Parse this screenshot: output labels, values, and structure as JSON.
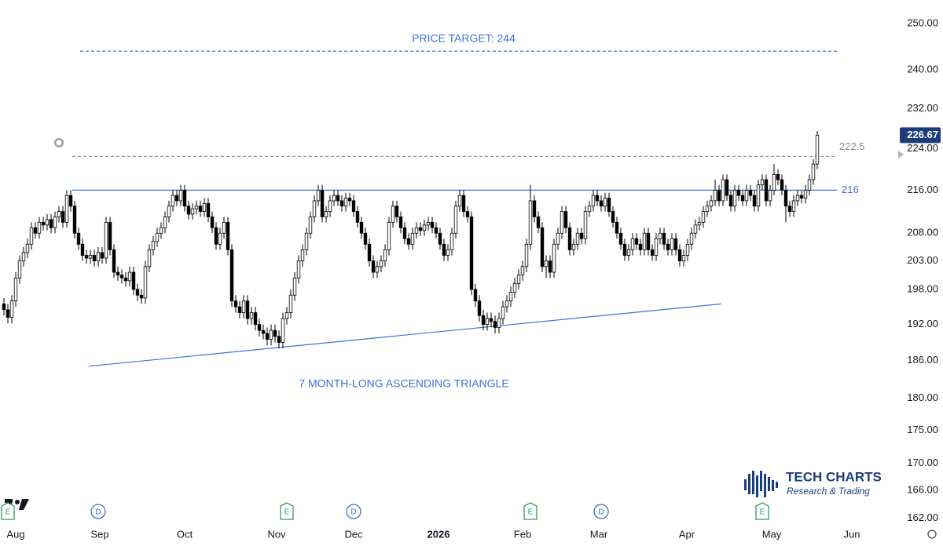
{
  "chart_data": {
    "type": "candlestick",
    "log_scale": true,
    "annotations": [
      "PRICE TARGET: 244",
      "7 MONTH-LONG ASCENDING TRIANGLE"
    ],
    "logo": {
      "title": "TECH CHARTS",
      "subtitle": "Research & Trading"
    },
    "up_color": "#ffffff",
    "down_color": "#000000",
    "wick_color": "#000000",
    "xlim": [
      -1,
      226
    ],
    "ylim": [
      158.1,
      255.2
    ],
    "xticks": [
      {
        "value": 3,
        "label": "Aug"
      },
      {
        "value": 24.4,
        "label": "Sep"
      },
      {
        "value": 46,
        "label": "Oct"
      },
      {
        "value": 69.4,
        "label": "Nov"
      },
      {
        "value": 89,
        "label": "Dec"
      },
      {
        "value": 110.6,
        "label": "2026"
      },
      {
        "value": 132,
        "label": "Feb"
      },
      {
        "value": 151.4,
        "label": "Mar"
      },
      {
        "value": 173.8,
        "label": "Apr"
      },
      {
        "value": 195.4,
        "label": "May"
      },
      {
        "value": 215.8,
        "label": "Jun"
      }
    ],
    "yticks": [
      {
        "value": 250,
        "label": "250.00"
      },
      {
        "value": 240,
        "label": "240.00"
      },
      {
        "value": 232,
        "label": "232.00"
      },
      {
        "value": 224,
        "label": "224.00"
      },
      {
        "value": 216,
        "label": "216.00"
      },
      {
        "value": 208,
        "label": "208.00"
      },
      {
        "value": 203,
        "label": "203.00"
      },
      {
        "value": 198,
        "label": "198.00"
      },
      {
        "value": 192,
        "label": "192.00"
      },
      {
        "value": 186,
        "label": "186.00"
      },
      {
        "value": 180,
        "label": "180.00"
      },
      {
        "value": 175,
        "label": "175.00"
      },
      {
        "value": 170,
        "label": "170.00"
      },
      {
        "value": 166,
        "label": "166.00"
      },
      {
        "value": 162,
        "label": "162.00"
      }
    ],
    "levels": [
      {
        "value": 244,
        "x": [
          19.4,
          212
        ],
        "color": "#3d6fe0",
        "dashed": true
      },
      {
        "value": 222.5,
        "x": [
          17.4,
          211.4
        ],
        "color": "#8a8a8a",
        "dashed": true
      },
      {
        "value": 216,
        "x": [
          17.4,
          212
        ],
        "color": "#3d6fe0",
        "dashed": false
      }
    ],
    "trendlines": [
      {
        "x": [
          21.6,
          182.6
        ],
        "y": [
          185.1,
          195.5
        ],
        "color": "#3d6fe0"
      }
    ],
    "events": [
      {
        "x": 1,
        "label": "E"
      },
      {
        "x": 24,
        "label": "D"
      },
      {
        "x": 72,
        "label": "E"
      },
      {
        "x": 89,
        "label": "D"
      },
      {
        "x": 134,
        "label": "E"
      },
      {
        "x": 152,
        "label": "D"
      },
      {
        "x": 193,
        "label": "E"
      }
    ],
    "ohlc": [
      [
        195.5,
        196.5,
        193.5,
        194.5
      ],
      [
        194.5,
        195.5,
        192.2,
        193.2
      ],
      [
        193.2,
        197,
        192.2,
        196
      ],
      [
        196,
        201,
        195,
        200
      ],
      [
        200,
        204,
        199,
        203
      ],
      [
        203,
        205.5,
        202,
        204.5
      ],
      [
        204.5,
        207,
        203.5,
        206
      ],
      [
        206,
        210,
        205,
        209
      ],
      [
        209,
        210,
        207,
        208
      ],
      [
        208,
        211,
        207,
        210
      ],
      [
        210,
        211,
        208.5,
        209.5
      ],
      [
        209.5,
        211.5,
        208.5,
        210.5
      ],
      [
        210.5,
        211.5,
        208,
        209
      ],
      [
        209,
        212,
        208,
        211
      ],
      [
        211,
        213,
        210,
        212
      ],
      [
        212,
        213,
        209,
        210
      ],
      [
        210,
        216,
        209,
        215
      ],
      [
        215,
        216,
        212,
        213
      ],
      [
        213,
        214,
        207,
        208
      ],
      [
        208,
        209,
        205,
        206
      ],
      [
        206,
        207,
        203,
        204
      ],
      [
        204,
        205,
        202.5,
        203.5
      ],
      [
        203.5,
        205,
        202.5,
        204
      ],
      [
        204,
        205,
        202,
        203
      ],
      [
        203,
        205.5,
        202,
        204.5
      ],
      [
        204.5,
        205.5,
        202.5,
        203.5
      ],
      [
        203.5,
        211,
        202.5,
        210
      ],
      [
        210,
        211,
        204,
        205
      ],
      [
        205,
        206,
        200,
        201
      ],
      [
        201,
        202,
        199.5,
        200.5
      ],
      [
        200.5,
        201.5,
        199,
        200
      ],
      [
        200,
        201,
        198.5,
        199.5
      ],
      [
        199.5,
        202,
        198.5,
        201
      ],
      [
        201,
        202,
        197,
        198
      ],
      [
        198,
        199,
        196,
        197
      ],
      [
        197,
        198,
        195.5,
        196.5
      ],
      [
        196.5,
        203,
        195.5,
        202
      ],
      [
        202,
        206,
        201,
        205
      ],
      [
        205,
        207.5,
        204,
        206.5
      ],
      [
        206.5,
        209,
        205.5,
        208
      ],
      [
        208,
        210,
        207,
        209
      ],
      [
        209,
        212,
        208,
        211
      ],
      [
        211,
        214,
        210,
        213
      ],
      [
        213,
        216,
        212,
        215
      ],
      [
        215,
        216,
        213,
        214
      ],
      [
        214,
        217,
        213,
        216
      ],
      [
        216,
        217,
        212,
        213
      ],
      [
        213,
        214,
        210.5,
        211.5
      ],
      [
        211.5,
        213.5,
        210.5,
        212.5
      ],
      [
        212.5,
        214,
        211.5,
        213
      ],
      [
        213,
        214,
        211,
        212
      ],
      [
        212,
        214.5,
        211,
        213.5
      ],
      [
        213.5,
        214.5,
        210,
        211
      ],
      [
        211,
        212,
        208,
        209
      ],
      [
        209,
        210,
        205,
        206
      ],
      [
        206,
        209,
        205,
        208
      ],
      [
        208,
        211,
        207,
        210
      ],
      [
        210,
        211,
        204,
        205
      ],
      [
        205,
        206,
        195,
        196
      ],
      [
        196,
        197,
        194,
        195
      ],
      [
        195,
        196,
        193,
        194
      ],
      [
        194,
        197,
        193,
        196
      ],
      [
        196,
        197,
        192,
        193
      ],
      [
        193,
        195,
        192,
        194
      ],
      [
        194,
        195,
        191,
        192
      ],
      [
        192,
        193,
        190,
        191
      ],
      [
        191,
        192,
        189.5,
        190.5
      ],
      [
        190.5,
        191.5,
        188.5,
        189.5
      ],
      [
        189.5,
        192,
        188.5,
        191
      ],
      [
        191,
        192,
        189,
        190
      ],
      [
        190,
        191,
        188,
        189
      ],
      [
        189,
        194,
        188,
        193
      ],
      [
        193,
        195,
        192,
        194
      ],
      [
        194,
        198,
        193,
        197
      ],
      [
        197,
        201,
        196,
        200
      ],
      [
        200,
        204,
        199,
        203
      ],
      [
        203,
        206,
        202,
        205
      ],
      [
        205,
        209,
        204,
        208
      ],
      [
        208,
        212,
        207,
        211
      ],
      [
        211,
        215,
        210,
        214
      ],
      [
        214,
        217,
        213,
        216
      ],
      [
        216,
        217,
        210,
        211
      ],
      [
        211,
        213,
        210,
        212
      ],
      [
        212,
        215,
        211,
        214
      ],
      [
        214,
        216,
        213,
        215
      ],
      [
        215,
        216,
        213,
        214
      ],
      [
        214,
        215,
        212,
        213
      ],
      [
        213,
        215.5,
        212,
        214.5
      ],
      [
        214.5,
        215.5,
        213,
        214
      ],
      [
        214,
        215,
        211,
        212
      ],
      [
        212,
        213,
        209,
        210
      ],
      [
        210,
        211,
        207,
        208
      ],
      [
        208,
        209,
        205,
        206
      ],
      [
        206,
        207,
        202,
        203
      ],
      [
        203,
        204,
        200,
        201
      ],
      [
        201,
        203,
        200,
        202
      ],
      [
        202,
        204,
        201,
        203
      ],
      [
        203,
        206,
        202,
        205
      ],
      [
        205,
        211,
        204,
        210
      ],
      [
        210,
        214,
        209,
        213
      ],
      [
        213,
        214,
        210,
        211
      ],
      [
        211,
        212,
        208,
        209
      ],
      [
        209,
        210,
        206,
        207
      ],
      [
        207,
        208,
        205,
        206
      ],
      [
        206,
        209,
        205,
        208
      ],
      [
        208,
        210,
        207,
        209
      ],
      [
        209,
        210,
        207.5,
        208.5
      ],
      [
        208.5,
        210.5,
        207.5,
        209.5
      ],
      [
        209.5,
        211,
        208.5,
        210
      ],
      [
        210,
        211,
        208,
        209
      ],
      [
        209,
        210,
        207,
        208
      ],
      [
        208,
        209,
        205,
        206
      ],
      [
        206,
        207,
        203,
        204
      ],
      [
        204,
        206,
        203,
        205
      ],
      [
        205,
        209,
        204,
        208
      ],
      [
        208,
        214,
        207,
        213
      ],
      [
        213,
        216,
        212,
        215
      ],
      [
        215,
        216,
        211,
        212
      ],
      [
        212,
        213,
        210,
        211
      ],
      [
        211,
        212,
        197,
        198
      ],
      [
        198,
        199,
        195,
        196
      ],
      [
        196,
        197,
        192.5,
        193.5
      ],
      [
        193.5,
        194.5,
        191,
        192
      ],
      [
        192,
        194,
        191,
        193
      ],
      [
        193,
        194,
        191.5,
        192.5
      ],
      [
        192.5,
        193.5,
        190.5,
        191.5
      ],
      [
        191.5,
        194,
        190.5,
        193
      ],
      [
        193,
        196,
        192,
        195
      ],
      [
        195,
        197,
        194,
        196
      ],
      [
        196,
        198.5,
        195,
        197.5
      ],
      [
        197.5,
        200,
        196.5,
        199
      ],
      [
        199,
        201.5,
        198,
        200.5
      ],
      [
        200.5,
        203,
        199.5,
        202
      ],
      [
        202,
        207,
        201,
        206
      ],
      [
        206,
        217,
        205,
        214
      ],
      [
        214,
        215,
        210,
        211
      ],
      [
        211,
        212,
        208,
        209
      ],
      [
        209,
        210,
        201,
        202
      ],
      [
        202,
        204,
        200,
        203
      ],
      [
        203,
        204,
        200,
        201
      ],
      [
        201,
        207,
        200,
        206
      ],
      [
        206,
        209,
        205,
        208
      ],
      [
        208,
        213,
        207,
        212
      ],
      [
        212,
        213,
        208,
        209
      ],
      [
        209,
        210,
        204,
        205
      ],
      [
        205,
        207,
        204,
        206
      ],
      [
        206,
        209,
        205,
        208
      ],
      [
        208,
        209,
        206,
        207
      ],
      [
        207,
        213,
        206,
        212
      ],
      [
        212,
        214,
        211,
        213
      ],
      [
        213,
        216,
        212,
        215
      ],
      [
        215,
        216,
        213,
        214
      ],
      [
        214,
        215,
        212,
        213
      ],
      [
        213,
        215.5,
        212,
        214.5
      ],
      [
        214.5,
        215.5,
        211,
        212
      ],
      [
        212,
        213,
        209,
        210
      ],
      [
        210,
        211,
        207,
        208
      ],
      [
        208,
        209,
        205,
        206
      ],
      [
        206,
        207,
        203,
        204
      ],
      [
        204,
        206,
        203,
        205
      ],
      [
        205,
        208,
        204,
        207
      ],
      [
        207,
        208,
        205,
        206
      ],
      [
        206,
        207,
        204,
        205
      ],
      [
        205,
        209,
        204,
        208
      ],
      [
        208,
        209,
        204,
        205
      ],
      [
        205,
        206,
        203,
        204
      ],
      [
        204,
        208,
        203,
        207
      ],
      [
        207,
        209,
        206,
        208
      ],
      [
        208,
        209,
        205,
        206
      ],
      [
        206,
        207,
        204,
        205
      ],
      [
        205,
        208,
        204,
        207
      ],
      [
        207,
        208,
        204,
        205
      ],
      [
        205,
        206,
        202,
        203
      ],
      [
        203,
        205,
        202,
        204
      ],
      [
        204,
        207,
        203,
        206
      ],
      [
        206,
        209,
        205,
        208
      ],
      [
        208,
        210.5,
        207,
        209.5
      ],
      [
        209.5,
        211,
        208.5,
        210
      ],
      [
        210,
        213,
        209,
        212
      ],
      [
        212,
        214,
        211,
        213
      ],
      [
        213,
        215,
        212,
        214
      ],
      [
        214,
        218,
        213,
        216
      ],
      [
        216,
        217,
        213,
        214
      ],
      [
        214,
        219,
        213,
        218
      ],
      [
        218,
        219,
        214,
        215
      ],
      [
        215,
        216,
        212,
        213
      ],
      [
        213,
        217,
        212,
        216
      ],
      [
        216,
        217,
        214,
        215
      ],
      [
        215,
        216,
        213,
        214
      ],
      [
        214,
        217,
        213,
        216
      ],
      [
        216,
        217,
        214,
        215
      ],
      [
        215,
        216,
        212,
        213
      ],
      [
        213,
        218,
        212,
        217
      ],
      [
        217,
        219,
        216,
        218
      ],
      [
        218,
        219,
        213,
        214
      ],
      [
        214,
        217,
        213,
        216
      ],
      [
        216,
        221,
        215,
        219
      ],
      [
        219,
        220,
        217,
        218
      ],
      [
        218,
        219,
        215,
        216
      ],
      [
        216,
        217,
        210,
        213
      ],
      [
        213,
        214,
        211,
        212
      ],
      [
        212,
        215,
        211,
        214
      ],
      [
        214,
        216,
        213,
        215
      ],
      [
        215,
        216,
        213.5,
        214.5
      ],
      [
        214.5,
        217,
        213.5,
        216
      ],
      [
        216,
        219,
        215,
        218
      ],
      [
        218,
        222,
        217,
        221
      ],
      [
        221,
        227.5,
        220,
        226.67
      ]
    ]
  }
}
